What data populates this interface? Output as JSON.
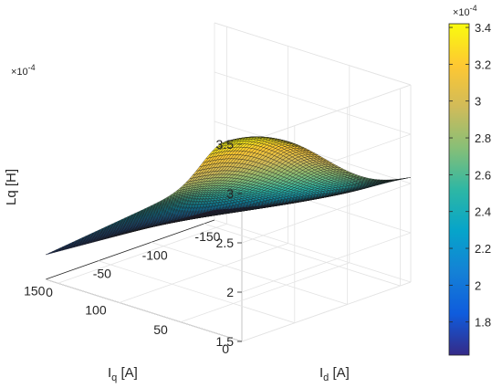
{
  "chart_data": {
    "type": "surface",
    "title": "",
    "xlabel": {
      "main": "I",
      "sub": "q",
      "unit": " [A]"
    },
    "ylabel": {
      "main": "I",
      "sub": "d",
      "unit": " [A]"
    },
    "zlabel": "Lq [H]",
    "z_exponent": {
      "base": "×10",
      "power": "-4"
    },
    "iq_ticks": [
      "0",
      "50",
      "100",
      "150"
    ],
    "id_ticks": [
      "0",
      "-50",
      "-100",
      "-150"
    ],
    "z_ticks": [
      "1.5",
      "2",
      "2.5",
      "3",
      "3.5"
    ],
    "xlim": [
      0,
      160
    ],
    "ylim": [
      -160,
      0
    ],
    "zlim": [
      1.5,
      3.5
    ],
    "zscale": 0.0001,
    "grid": true,
    "colormap": "parula",
    "colorbar": {
      "ticks": [
        "1.8",
        "2",
        "2.2",
        "2.4",
        "2.6",
        "2.8",
        "3",
        "3.2",
        "3.4"
      ],
      "exponent": {
        "base": "×10",
        "power": "-4"
      },
      "range": [
        1.62,
        3.42
      ]
    },
    "surface_corners": {
      "iq0_id0": 3.3,
      "iq160_id0": 1.75,
      "iq0_id-160": 2.55,
      "iq160_id-160": 1.6
    },
    "peak": {
      "iq": 15,
      "id": -10,
      "Lq": 3.42
    },
    "mesh": {
      "iq_lines": 60,
      "id_lines": 60
    }
  }
}
